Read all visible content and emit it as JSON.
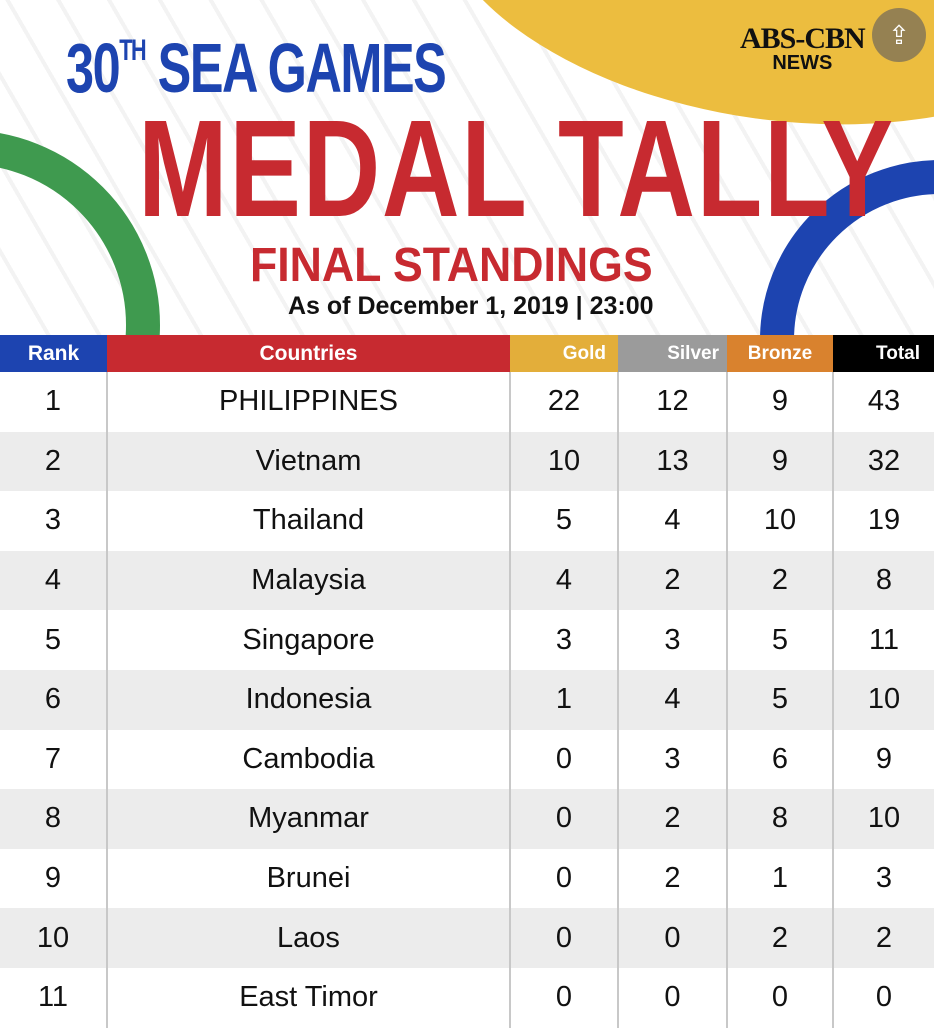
{
  "header": {
    "edition": "30",
    "edition_suffix": "TH",
    "event": "SEA GAMES",
    "title": "MEDAL TALLY",
    "subtitle": "FINAL STANDINGS",
    "as_of": "As of December 1, 2019 | 23:00",
    "logo_text": "ABS-CBN",
    "logo_sub": "NEWS",
    "share_icon": "share-icon"
  },
  "colors": {
    "rank": "#1d44b0",
    "countries": "#c72a30",
    "gold": "#e3ae3a",
    "silver": "#9b9b9b",
    "bronze": "#d9822e",
    "total": "#000000"
  },
  "columns": [
    "Rank",
    "Countries",
    "Gold",
    "Silver",
    "Bronze",
    "Total"
  ],
  "rows": [
    [
      "1",
      "PHILIPPINES",
      "22",
      "12",
      "9",
      "43"
    ],
    [
      "2",
      "Vietnam",
      "10",
      "13",
      "9",
      "32"
    ],
    [
      "3",
      "Thailand",
      "5",
      "4",
      "10",
      "19"
    ],
    [
      "4",
      "Malaysia",
      "4",
      "2",
      "2",
      "8"
    ],
    [
      "5",
      "Singapore",
      "3",
      "3",
      "5",
      "11"
    ],
    [
      "6",
      "Indonesia",
      "1",
      "4",
      "5",
      "10"
    ],
    [
      "7",
      "Cambodia",
      "0",
      "3",
      "6",
      "9"
    ],
    [
      "8",
      "Myanmar",
      "0",
      "2",
      "8",
      "10"
    ],
    [
      "9",
      "Brunei",
      "0",
      "2",
      "1",
      "3"
    ],
    [
      "10",
      "Laos",
      "0",
      "0",
      "2",
      "2"
    ],
    [
      "11",
      "East Timor",
      "0",
      "0",
      "0",
      "0"
    ]
  ]
}
